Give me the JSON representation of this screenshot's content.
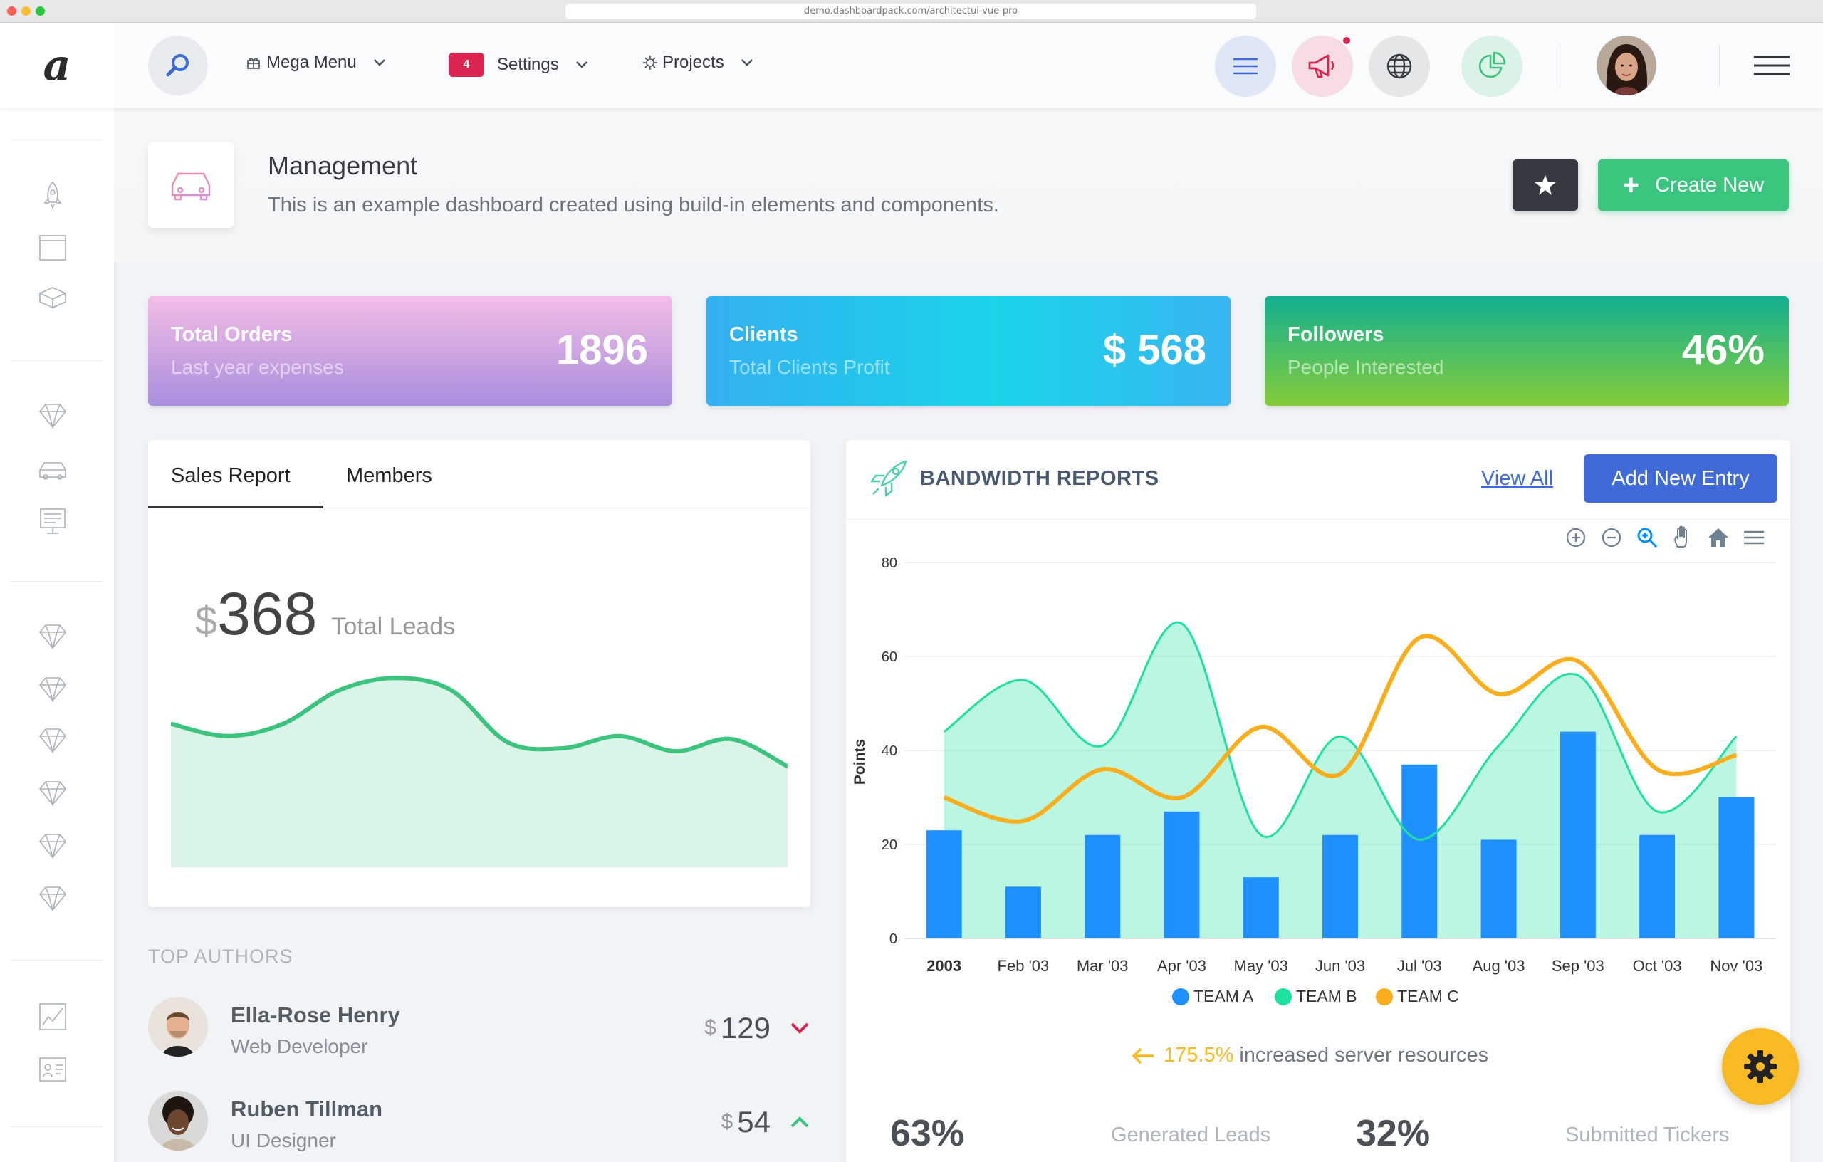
{
  "browser": {
    "url": "demo.dashboardpack.com/architectui-vue-pro"
  },
  "header": {
    "logo": "a",
    "menus": [
      {
        "label": "Mega Menu"
      },
      {
        "label": "Settings",
        "badge": "4"
      },
      {
        "label": "Projects"
      }
    ]
  },
  "page": {
    "title": "Management",
    "subtitle": "This is an example dashboard created using build-in elements and components.",
    "create_label": "Create New"
  },
  "stats": [
    {
      "title": "Total Orders",
      "subtitle": "Last year expenses",
      "value": "1896"
    },
    {
      "title": "Clients",
      "subtitle": "Total Clients Profit",
      "value": "$ 568"
    },
    {
      "title": "Followers",
      "subtitle": "People Interested",
      "value": "46%"
    }
  ],
  "sales": {
    "tabs": [
      "Sales Report",
      "Members"
    ],
    "currency": "$",
    "amount": "368",
    "label": "Total Leads"
  },
  "authors": {
    "heading": "TOP AUTHORS",
    "items": [
      {
        "name": "Ella-Rose Henry",
        "role": "Web Developer",
        "currency": "$",
        "amount": "129",
        "trend": "down"
      },
      {
        "name": "Ruben Tillman",
        "role": "UI Designer",
        "currency": "$",
        "amount": "54",
        "trend": "up"
      }
    ]
  },
  "bandwidth": {
    "title": "BANDWIDTH REPORTS",
    "view_all": "View All",
    "add_entry": "Add New Entry",
    "increase_pct": "175.5%",
    "increase_text": "increased server resources",
    "bottom": [
      {
        "value": "63%",
        "label": "Generated Leads"
      },
      {
        "value": "32%",
        "label": "Submitted Tickers"
      }
    ]
  },
  "chart_data": {
    "type": "bar",
    "categories": [
      "2003",
      "Feb '03",
      "Mar '03",
      "Apr '03",
      "May '03",
      "Jun '03",
      "Jul '03",
      "Aug '03",
      "Sep '03",
      "Oct '03",
      "Nov '03"
    ],
    "ylabel": "Points",
    "ylim": [
      0,
      80
    ],
    "yticks": [
      0,
      20,
      40,
      60,
      80
    ],
    "grid": true,
    "legend": "bottom",
    "series": [
      {
        "name": "TEAM A",
        "type": "bar",
        "color": "#1e90ff",
        "values": [
          23,
          11,
          22,
          27,
          13,
          22,
          37,
          21,
          44,
          22,
          30
        ]
      },
      {
        "name": "TEAM B",
        "type": "area",
        "color": "#1ee0a0",
        "values": [
          44,
          55,
          41,
          67,
          22,
          43,
          21,
          41,
          56,
          27,
          43
        ]
      },
      {
        "name": "TEAM C",
        "type": "line",
        "color": "#fbae1c",
        "values": [
          30,
          25,
          36,
          30,
          45,
          35,
          64,
          52,
          59,
          36,
          39
        ]
      }
    ]
  },
  "sales_chart_data": {
    "type": "area",
    "color": "#3ac47d",
    "values": [
      47,
      43,
      47,
      58,
      62,
      58,
      41,
      39,
      43,
      38,
      42,
      33
    ]
  }
}
